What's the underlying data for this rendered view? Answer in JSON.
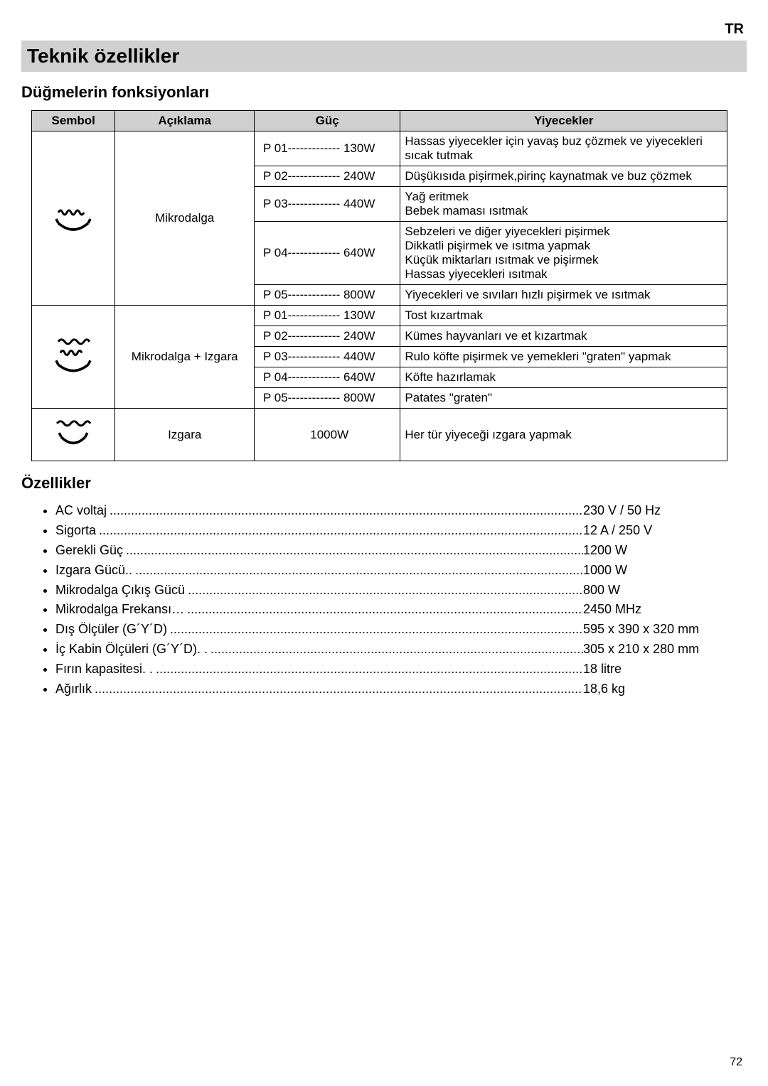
{
  "language_code": "TR",
  "main_title": "Teknik özellikler",
  "section1_heading": "Düğmelerin fonksiyonları",
  "table": {
    "headers": {
      "symbol": "Sembol",
      "desc": "Açıklama",
      "power": "Güç",
      "food": "Yiyecekler"
    },
    "groups": [
      {
        "icon": "microwave",
        "desc": "Mikrodalga",
        "rows": [
          {
            "power": "P 01------------- 130W",
            "food": "Hassas yiyecekler için yavaş buz çözmek ve yiyecekleri sıcak tutmak"
          },
          {
            "power": "P 02------------- 240W",
            "food": "Düşükısıda pişirmek,pirinç kaynatmak ve buz çözmek"
          },
          {
            "power": "P 03------------- 440W",
            "food": "Yağ eritmek\nBebek maması ısıtmak"
          },
          {
            "power": "P 04------------- 640W",
            "food": "Sebzeleri ve diğer yiyecekleri pişirmek\nDikkatli pişirmek ve ısıtma yapmak\nKüçük miktarları ısıtmak ve pişirmek\nHassas yiyecekleri ısıtmak"
          },
          {
            "power": "P 05------------- 800W",
            "food": "Yiyecekleri ve sıvıları hızlı pişirmek ve ısıtmak"
          }
        ]
      },
      {
        "icon": "microwave-grill",
        "desc": "Mikrodalga + Izgara",
        "rows": [
          {
            "power": "P 01------------- 130W",
            "food": "Tost kızartmak"
          },
          {
            "power": "P 02------------- 240W",
            "food": "Kümes hayvanları ve et kızartmak"
          },
          {
            "power": "P 03------------- 440W",
            "food": "Rulo köfte pişirmek ve yemekleri \"graten\" yapmak"
          },
          {
            "power": "P 04------------- 640W",
            "food": "Köfte hazırlamak"
          },
          {
            "power": "P 05------------- 800W",
            "food": "Patates \"graten\""
          }
        ]
      },
      {
        "icon": "grill",
        "desc": "Izgara",
        "rows": [
          {
            "power": "1000W",
            "food": "Her tür yiyeceği ızgara yapmak"
          }
        ]
      }
    ]
  },
  "section2_heading": "Özellikler",
  "specs": [
    {
      "label": "AC voltaj ",
      "value": "230 V / 50 Hz"
    },
    {
      "label": "Sigorta ",
      "value": "12 A / 250 V"
    },
    {
      "label": "Gerekli Güç ",
      "value": "1200 W"
    },
    {
      "label": "Izgara Gücü.. ",
      "value": "1000 W"
    },
    {
      "label": "Mikrodalga Çıkış Gücü ",
      "value": "800 W"
    },
    {
      "label": "Mikrodalga Frekansı… ",
      "value": "2450 MHz"
    },
    {
      "label": "Dış Ölçüler (G´Y´D) ",
      "value": "595 x 390 x 320 mm"
    },
    {
      "label": "İç Kabin Ölçüleri (G´Y´D). . ",
      "value": "305 x 210 x 280 mm"
    },
    {
      "label": "Fırın kapasitesi. . ",
      "value": "18 litre"
    },
    {
      "label": "Ağırlık ",
      "value": "18,6 kg"
    }
  ],
  "page_number": "72",
  "colors": {
    "header_bg": "#d0d0d0",
    "border": "#000000",
    "text": "#000000",
    "background": "#ffffff"
  }
}
